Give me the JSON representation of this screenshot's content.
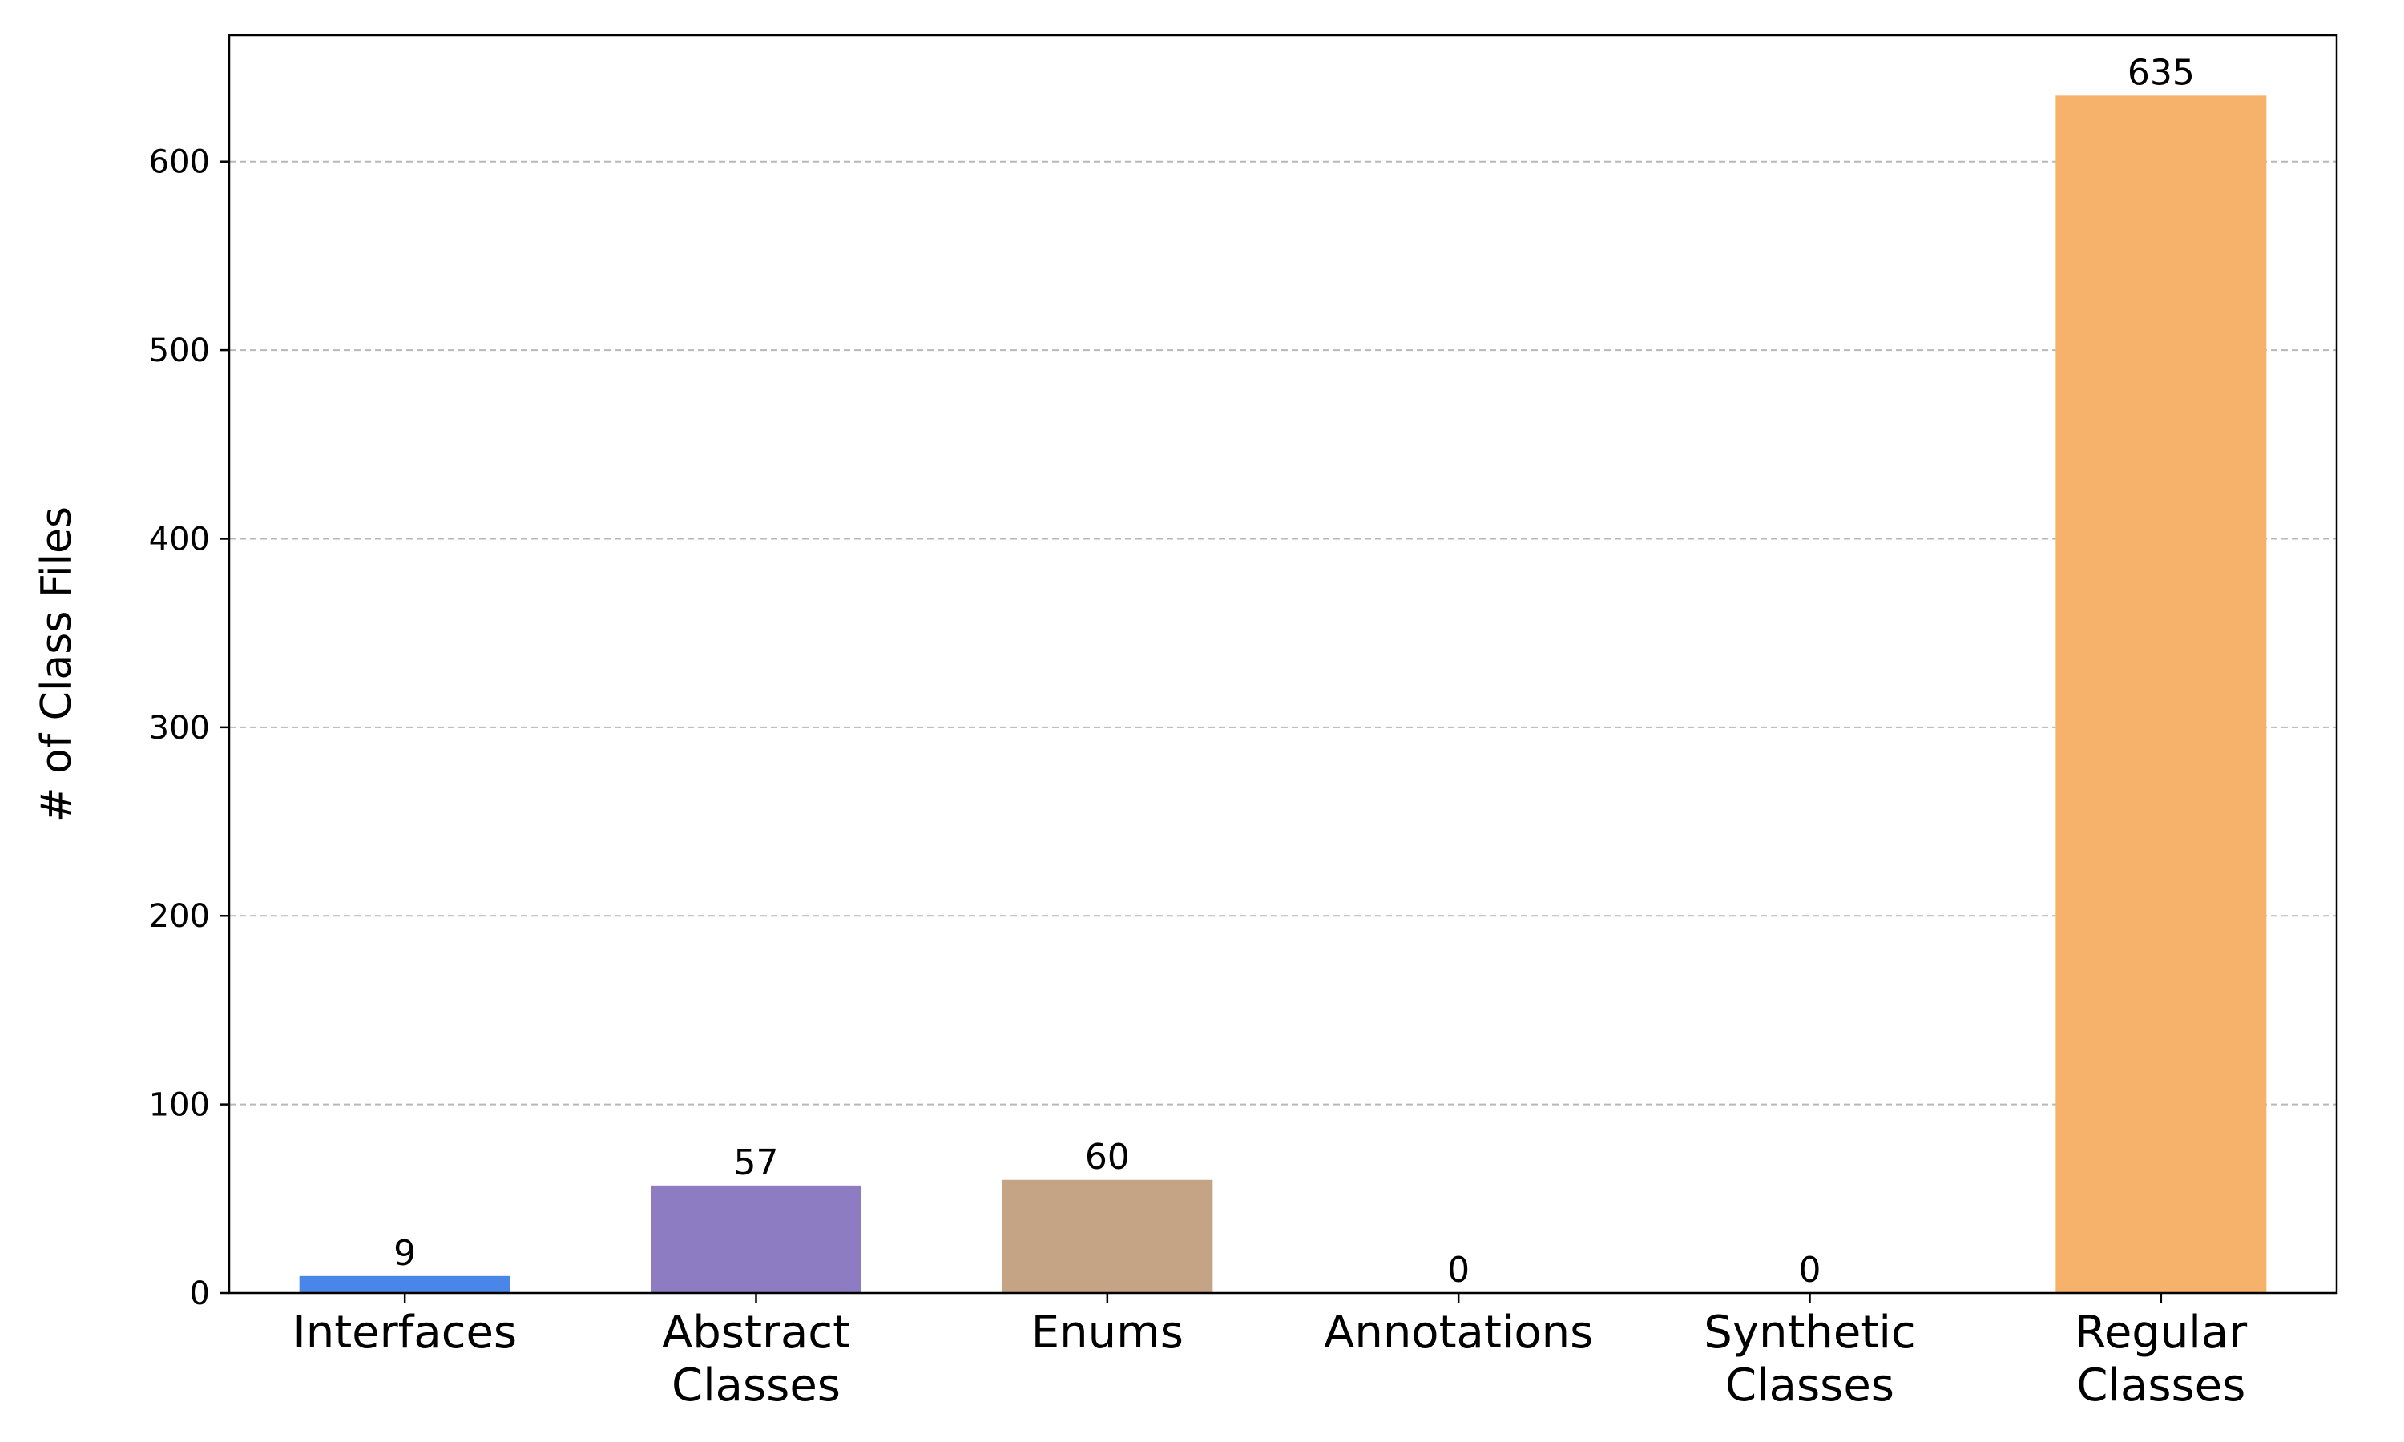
{
  "chart_data": {
    "type": "bar",
    "title": "",
    "xlabel": "",
    "ylabel": "# of Class Files",
    "ylim": [
      0,
      667
    ],
    "yticks": [
      0,
      100,
      200,
      300,
      400,
      500,
      600
    ],
    "grid": "y-dashed",
    "legend": "none",
    "categories": [
      [
        "Interfaces"
      ],
      [
        "Abstract",
        "Classes"
      ],
      [
        "Enums"
      ],
      [
        "Annotations"
      ],
      [
        "Synthetic",
        "Classes"
      ],
      [
        "Regular",
        "Classes"
      ]
    ],
    "values": [
      9,
      57,
      60,
      0,
      0,
      635
    ],
    "colors": [
      "#4a86e8",
      "#8e7cc3",
      "#c4a484",
      "#9fc5e8",
      "#f4c7a0",
      "#f6b26b"
    ]
  }
}
